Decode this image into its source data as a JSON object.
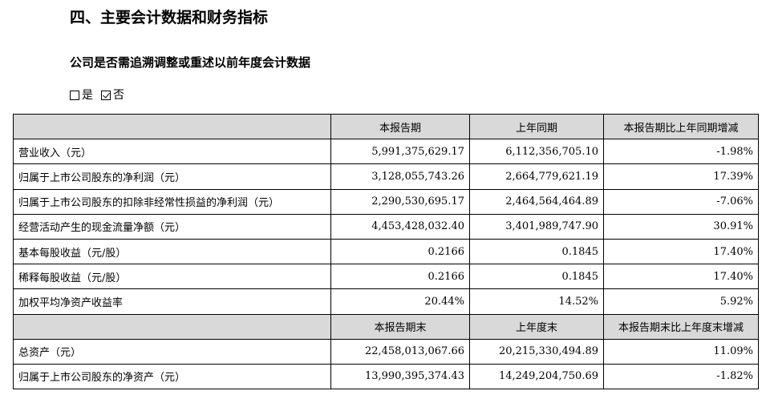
{
  "section_title": "四、主要会计数据和财务指标",
  "question": "公司是否需追溯调整或重述以前年度会计数据",
  "options": [
    {
      "label": "是",
      "checked": false
    },
    {
      "label": "否",
      "checked": true
    }
  ],
  "table": {
    "header1": [
      "",
      "本报告期",
      "上年同期",
      "本报告期比上年同期增减"
    ],
    "rows1": [
      {
        "label": "营业收入（元）",
        "current": "5,991,375,629.17",
        "prior": "6,112,356,705.10",
        "change": "-1.98%"
      },
      {
        "label": "归属于上市公司股东的净利润（元）",
        "current": "3,128,055,743.26",
        "prior": "2,664,779,621.19",
        "change": "17.39%"
      },
      {
        "label": "归属于上市公司股东的扣除非经常性损益的净利润（元）",
        "current": "2,290,530,695.17",
        "prior": "2,464,564,464.89",
        "change": "-7.06%"
      },
      {
        "label": "经营活动产生的现金流量净额（元）",
        "current": "4,453,428,032.40",
        "prior": "3,401,989,747.90",
        "change": "30.91%"
      },
      {
        "label": "基本每股收益（元/股）",
        "current": "0.2166",
        "prior": "0.1845",
        "change": "17.40%"
      },
      {
        "label": "稀释每股收益（元/股）",
        "current": "0.2166",
        "prior": "0.1845",
        "change": "17.40%"
      },
      {
        "label": "加权平均净资产收益率",
        "current": "20.44%",
        "prior": "14.52%",
        "change": "5.92%"
      }
    ],
    "header2": [
      "",
      "本报告期末",
      "上年度末",
      "本报告期末比上年度末增减"
    ],
    "rows2": [
      {
        "label": "总资产（元）",
        "current": "22,458,013,067.66",
        "prior": "20,215,330,494.89",
        "change": "11.09%"
      },
      {
        "label": "归属于上市公司股东的净资产（元）",
        "current": "13,990,395,374.43",
        "prior": "14,249,204,750.69",
        "change": "-1.82%"
      }
    ]
  }
}
